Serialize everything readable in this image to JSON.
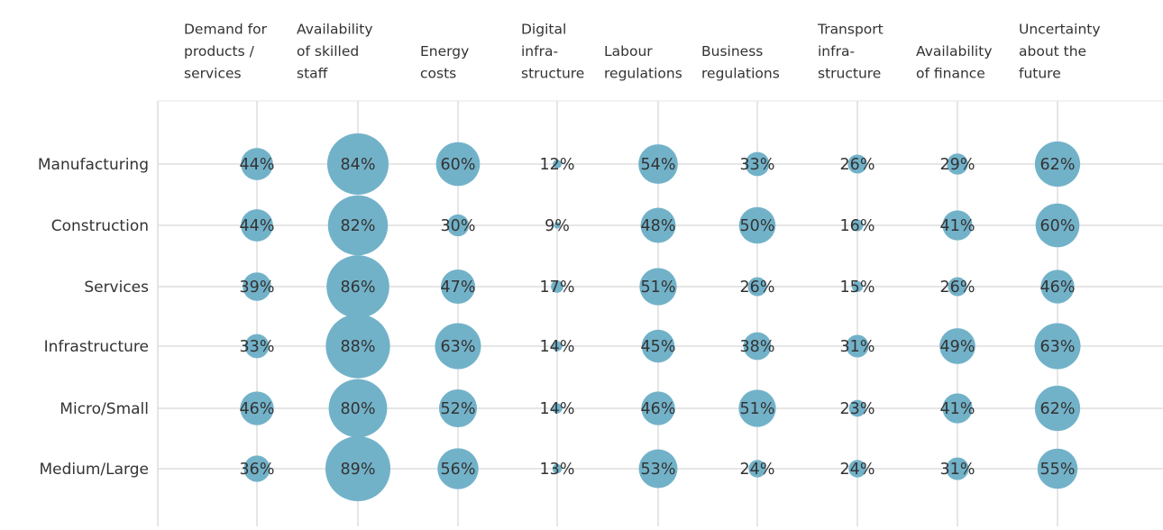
{
  "chart_data": {
    "type": "bubble-grid",
    "color": "#72b2c9",
    "columns": [
      [
        "Demand for",
        "products /",
        "services"
      ],
      [
        "Availability",
        "of skilled",
        "staff"
      ],
      [
        "Energy",
        "costs"
      ],
      [
        "Digital",
        "infra-",
        "structure"
      ],
      [
        "Labour",
        "regulations"
      ],
      [
        "Business",
        "regulations"
      ],
      [
        "Transport",
        "infra-",
        "structure"
      ],
      [
        "Availability",
        "of finance"
      ],
      [
        "Uncertainty",
        "about the",
        "future"
      ]
    ],
    "series": [
      {
        "name": "Manufacturing",
        "values": [
          44,
          84,
          60,
          12,
          54,
          33,
          26,
          29,
          62
        ],
        "value_labels": [
          "44%",
          "84%",
          "60%",
          "12%",
          "54%",
          "33%",
          "26%",
          "29%",
          "62%"
        ]
      },
      {
        "name": "Construction",
        "values": [
          44,
          82,
          30,
          9,
          48,
          50,
          16,
          41,
          60
        ],
        "value_labels": [
          "44%",
          "82%",
          "30%",
          "9%",
          "48%",
          "50%",
          "16%",
          "41%",
          "60%"
        ]
      },
      {
        "name": "Services",
        "values": [
          39,
          86,
          47,
          17,
          51,
          26,
          15,
          26,
          46
        ],
        "value_labels": [
          "39%",
          "86%",
          "47%",
          "17%",
          "51%",
          "26%",
          "15%",
          "26%",
          "46%"
        ]
      },
      {
        "name": "Infrastructure",
        "values": [
          33,
          88,
          63,
          14,
          45,
          38,
          31,
          49,
          63
        ],
        "value_labels": [
          "33%",
          "88%",
          "63%",
          "14%",
          "45%",
          "38%",
          "31%",
          "49%",
          "63%"
        ]
      },
      {
        "name": "Micro/Small",
        "values": [
          46,
          80,
          52,
          14,
          46,
          51,
          23,
          41,
          62
        ],
        "value_labels": [
          "46%",
          "80%",
          "52%",
          "14%",
          "46%",
          "51%",
          "23%",
          "41%",
          "62%"
        ]
      },
      {
        "name": "Medium/Large",
        "values": [
          36,
          89,
          56,
          13,
          53,
          24,
          24,
          31,
          55
        ],
        "value_labels": [
          "36%",
          "89%",
          "56%",
          "13%",
          "53%",
          "24%",
          "24%",
          "31%",
          "55%"
        ]
      }
    ]
  }
}
